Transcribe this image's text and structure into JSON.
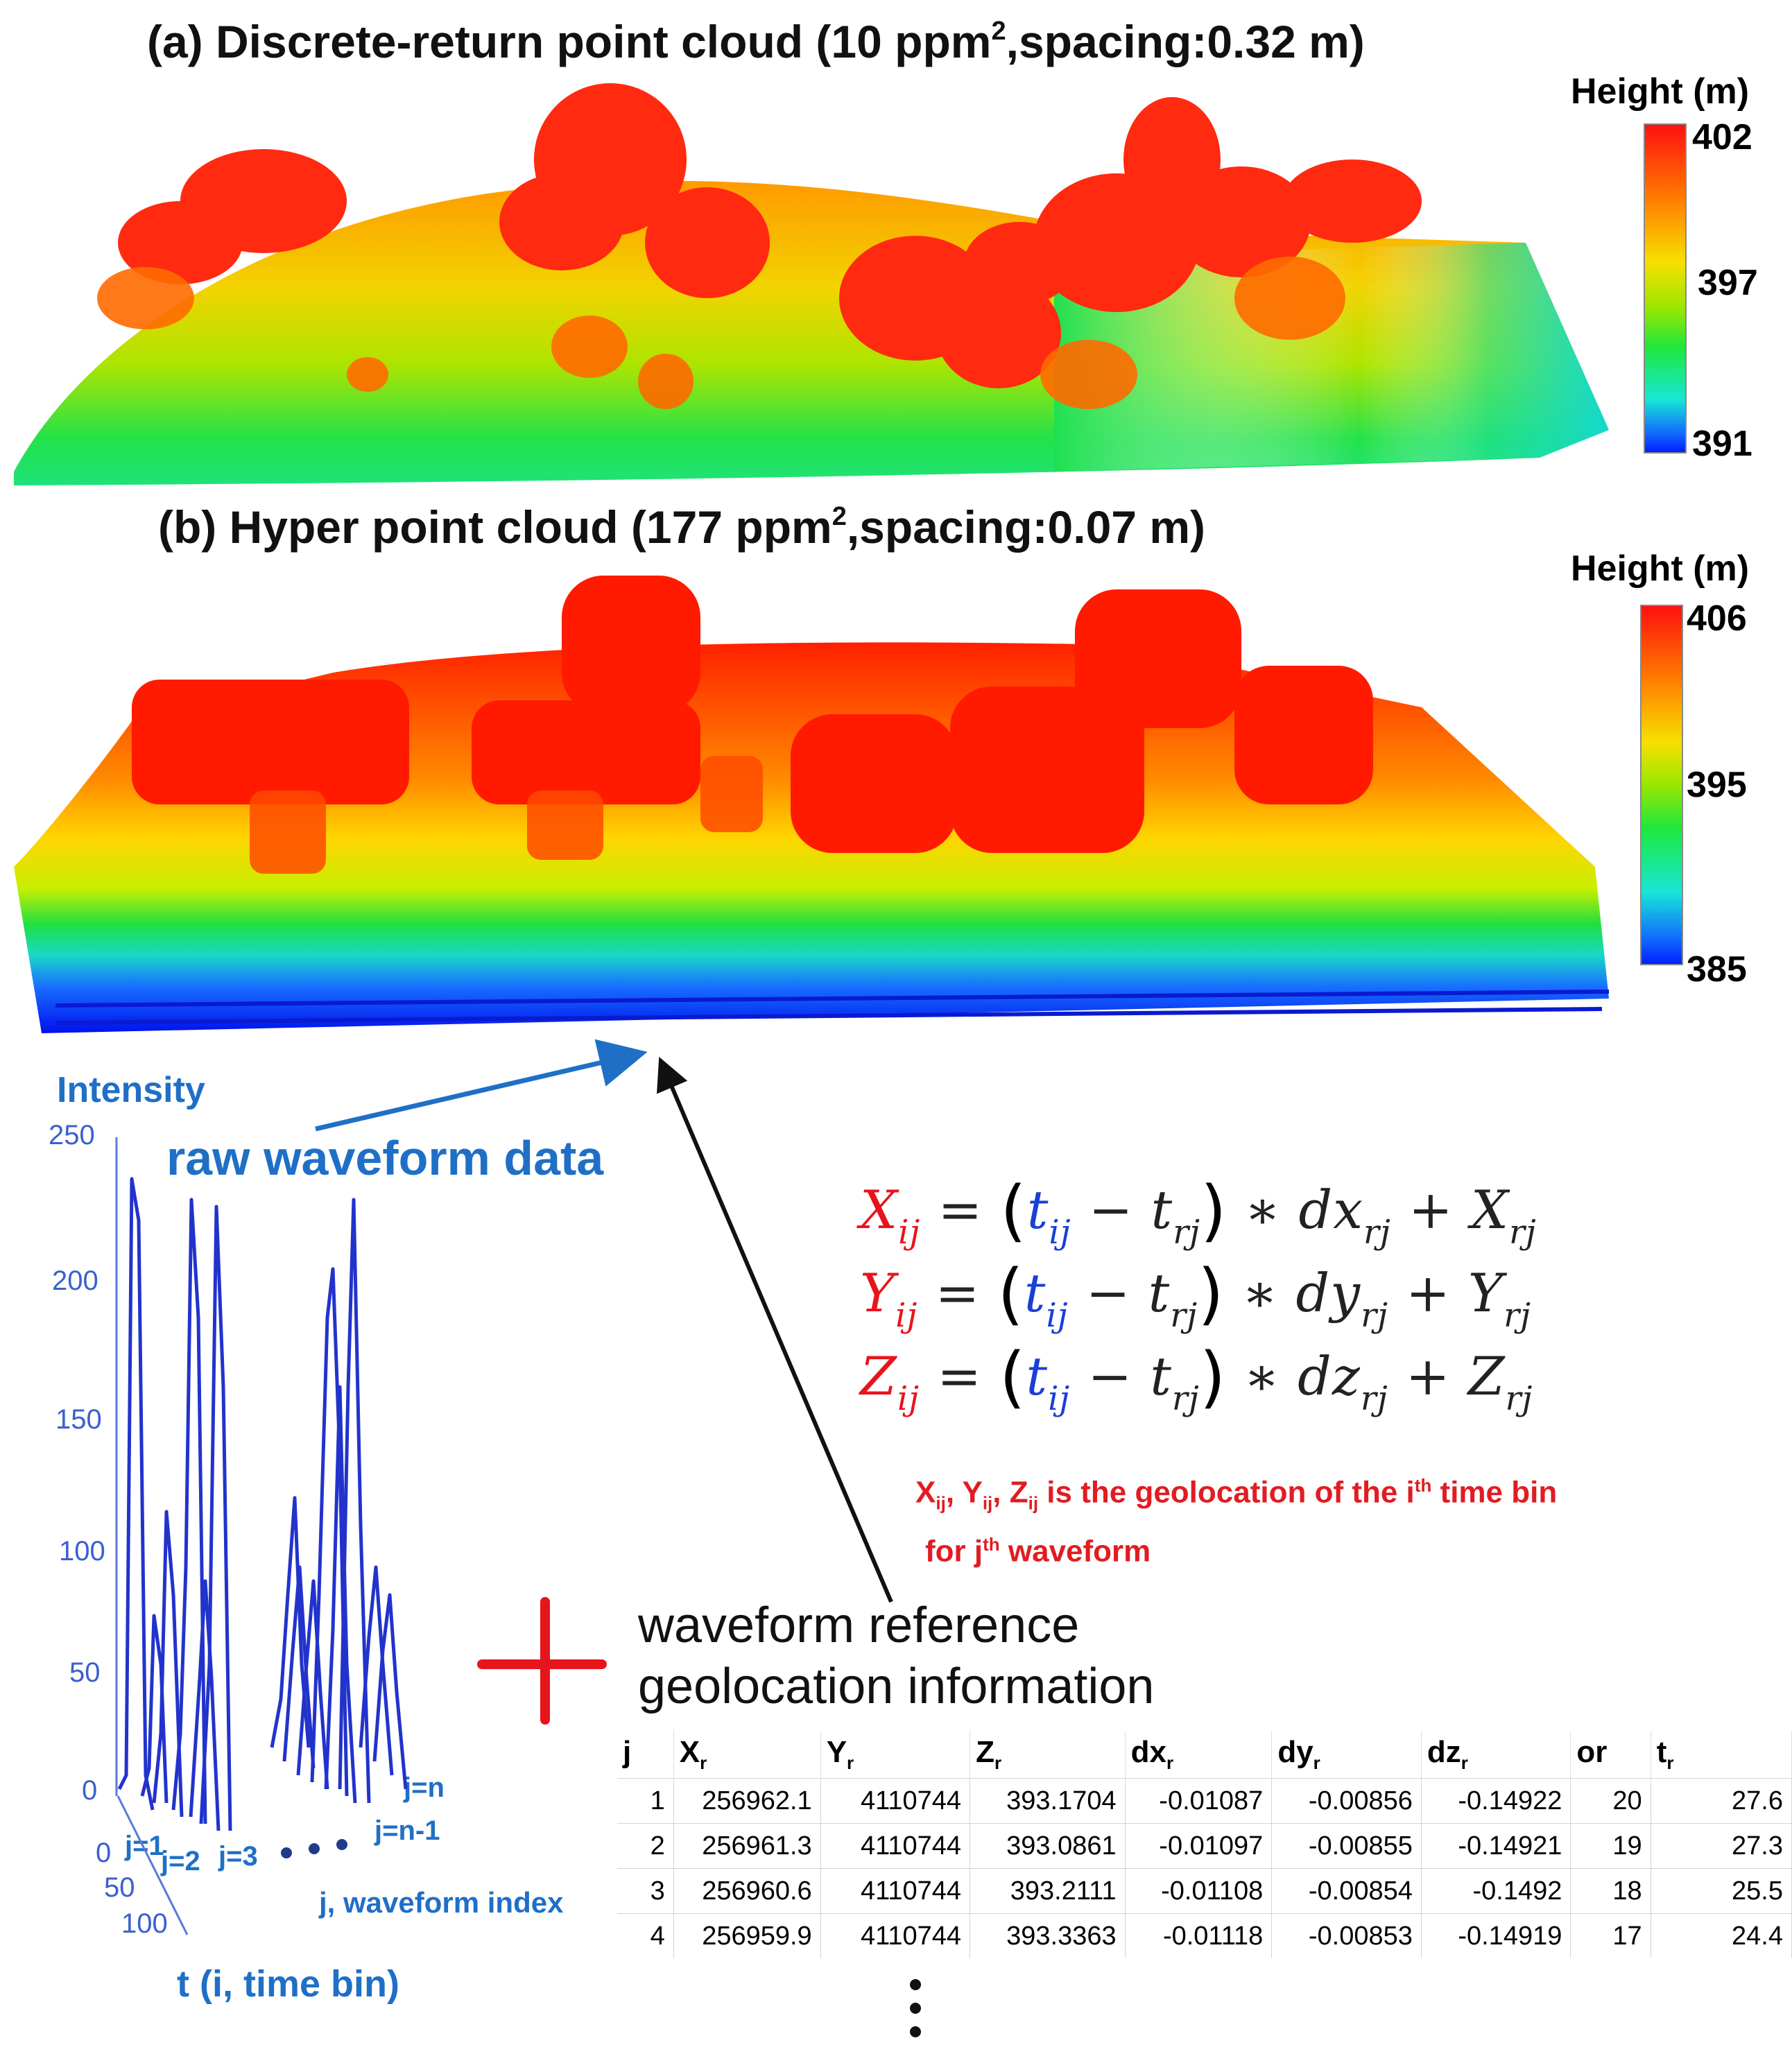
{
  "panel_a": {
    "title_main": "(a) Discrete-return point cloud (10 ppm",
    "title_sup": "2",
    "title_tail": ",spacing:0.32 m)",
    "colorbar": {
      "title": "Height (m)",
      "max": "402",
      "mid": "397",
      "min": "391"
    }
  },
  "panel_b": {
    "title_main": "(b) Hyper point cloud (177 ppm",
    "title_sup": "2",
    "title_tail": ",spacing:0.07 m)",
    "colorbar": {
      "title": "Height (m)",
      "max": "406",
      "mid": "395",
      "min": "385"
    }
  },
  "waveform_plot": {
    "y_title": "Intensity",
    "y_ticks": [
      "250",
      "200",
      "150",
      "100",
      "50",
      "0"
    ],
    "t_ticks": [
      "0",
      "50",
      "100"
    ],
    "t_title": "t (i, time bin)",
    "j_labels": [
      "j=1",
      "j=2",
      "j=3",
      "j=n-1",
      "j=n"
    ],
    "j_title": "j, waveform index",
    "raw_label": "raw waveform data"
  },
  "equations": {
    "x": {
      "lhs": "X",
      "coef": "dx",
      "ref": "X"
    },
    "y": {
      "lhs": "Y",
      "coef": "dy",
      "ref": "Y"
    },
    "z": {
      "lhs": "Z",
      "coef": "dz",
      "ref": "Z"
    },
    "ij": "ij",
    "t": "t",
    "rj": "rj"
  },
  "note": {
    "x": "X",
    "y": "Y",
    "z": "Z",
    "ij": "ij",
    "is_text": " is the geolocation of the i",
    "th": "th",
    "time_bin": " time bin",
    "for_j": "for j",
    "waveform": " waveform"
  },
  "reference": {
    "line1": "waveform reference",
    "line2": "geolocation information"
  },
  "table": {
    "headers": [
      {
        "base": "j",
        "sub": ""
      },
      {
        "base": "X",
        "sub": "r"
      },
      {
        "base": "Y",
        "sub": "r"
      },
      {
        "base": "Z",
        "sub": "r"
      },
      {
        "base": "dx",
        "sub": "r"
      },
      {
        "base": "dy",
        "sub": "r"
      },
      {
        "base": "dz",
        "sub": "r"
      },
      {
        "base": "or",
        "sub": ""
      },
      {
        "base": "t",
        "sub": "r"
      }
    ],
    "rows": [
      [
        "1",
        "256962.1",
        "4110744",
        "393.1704",
        "-0.01087",
        "-0.00856",
        "-0.14922",
        "20",
        "27.6"
      ],
      [
        "2",
        "256961.3",
        "4110744",
        "393.0861",
        "-0.01097",
        "-0.00855",
        "-0.14921",
        "19",
        "27.3"
      ],
      [
        "3",
        "256960.6",
        "4110744",
        "393.2111",
        "-0.01108",
        "-0.00854",
        "-0.1492",
        "18",
        "25.5"
      ],
      [
        "4",
        "256959.9",
        "4110744",
        "393.3363",
        "-0.01118",
        "-0.00853",
        "-0.14919",
        "17",
        "24.4"
      ]
    ]
  },
  "colors": {
    "red": "#e8141c",
    "blue": "#1a3fd6",
    "wave_blue": "#2233cc",
    "label_blue": "#1f6fc7"
  }
}
